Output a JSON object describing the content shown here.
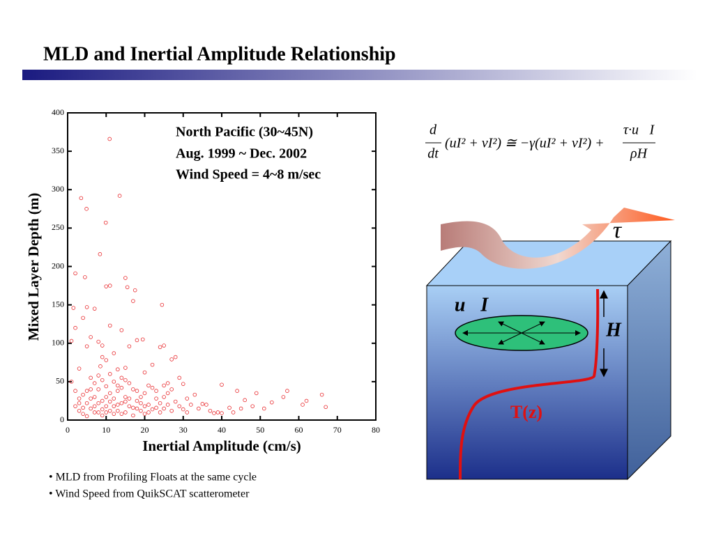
{
  "title": "MLD and Inertial Amplitude Relationship",
  "chart_data": {
    "type": "scatter",
    "xlabel": "Inertial Amplitude (cm/s)",
    "ylabel": "Mixed Layer Depth (m)",
    "annotation": [
      "North Pacific (30~45N)",
      "Aug. 1999 ~ Dec. 2002",
      "Wind Speed = 4~8 m/sec"
    ],
    "color": "#e8262a",
    "marker": "hollow-circle",
    "xlim": [
      0,
      80
    ],
    "xticks": [
      0,
      10,
      20,
      30,
      40,
      50,
      60,
      70,
      80
    ],
    "ylim": [
      0,
      400
    ],
    "yticks": [
      0,
      50,
      100,
      150,
      200,
      250,
      300,
      350,
      400
    ],
    "grid": false,
    "x": [
      10.9,
      3.5,
      13.5,
      4.9,
      9.9,
      8.4,
      2,
      4.5,
      15,
      10,
      11,
      15.5,
      17.5,
      7,
      4,
      1.5,
      17,
      24.5,
      5,
      11,
      6,
      14,
      8,
      2,
      1,
      9,
      16,
      18,
      19.5,
      24,
      25,
      5,
      12,
      9,
      10,
      8.5,
      3,
      13,
      15,
      22,
      27,
      28,
      20,
      26,
      30,
      29,
      40,
      57,
      49,
      44,
      33,
      35,
      36,
      42,
      45,
      46,
      53,
      56,
      62,
      61,
      66,
      67,
      39,
      40,
      38,
      25,
      1,
      2,
      3,
      4,
      5,
      6,
      7,
      8,
      9,
      10,
      11,
      12,
      13,
      14,
      15,
      16,
      17,
      18,
      19,
      20,
      21,
      22,
      23,
      24,
      3,
      4,
      5,
      6,
      7,
      8,
      9,
      10,
      11,
      12,
      13,
      14,
      15,
      16,
      17,
      18,
      19,
      20,
      21,
      22,
      6,
      7,
      8,
      9,
      10,
      11,
      12,
      13,
      14,
      15,
      2,
      3,
      4,
      5,
      6,
      7,
      8,
      9,
      10,
      11,
      12,
      13,
      14,
      15,
      16,
      17,
      18,
      19,
      20,
      21,
      23,
      24,
      25,
      26,
      27,
      28,
      29,
      30,
      31,
      32,
      26,
      27,
      25,
      23,
      31,
      34,
      37,
      43,
      48,
      51
    ],
    "values": [
      366,
      289,
      292,
      275,
      257,
      216,
      191,
      186,
      185,
      174,
      175,
      173,
      169,
      145,
      133,
      146,
      155,
      150,
      147,
      123,
      108,
      117,
      102,
      120,
      103,
      97,
      96,
      104,
      105,
      95,
      97,
      96,
      87,
      82,
      78,
      70,
      67,
      66,
      68,
      72,
      79,
      82,
      62,
      48,
      47,
      55,
      46,
      38,
      35,
      38,
      33,
      21,
      20,
      16,
      15,
      26,
      23,
      30,
      25,
      20,
      33,
      17,
      10,
      9,
      9,
      15,
      50,
      38,
      28,
      33,
      22,
      15,
      30,
      40,
      25,
      18,
      35,
      28,
      45,
      22,
      30,
      18,
      40,
      25,
      12,
      35,
      20,
      42,
      28,
      10,
      12,
      8,
      5,
      28,
      18,
      10,
      6,
      30,
      12,
      8,
      20,
      55,
      10,
      48,
      6,
      15,
      30,
      8,
      45,
      14,
      55,
      48,
      58,
      52,
      44,
      60,
      50,
      38,
      42,
      52,
      18,
      22,
      16,
      38,
      40,
      10,
      22,
      14,
      10,
      24,
      18,
      12,
      8,
      24,
      28,
      16,
      38,
      22,
      18,
      10,
      16,
      22,
      30,
      20,
      12,
      24,
      18,
      14,
      10,
      20,
      35,
      40,
      45,
      38,
      28,
      15,
      12,
      10,
      18,
      15
    ]
  },
  "equation": {
    "num": "d",
    "den": "dt",
    "middle": "(uI² + vI²) ≅ −γ(uI² + vI²) +",
    "num2": "τ·u⃗I",
    "den2": "ρH"
  },
  "diagram": {
    "tau": "τ",
    "current": "u⃗I",
    "depth": "H",
    "temperature": "T(z)"
  },
  "bullets": [
    "• MLD from Profiling Floats at the same cycle",
    "• Wind Speed from QuikSCAT scatterometer"
  ]
}
